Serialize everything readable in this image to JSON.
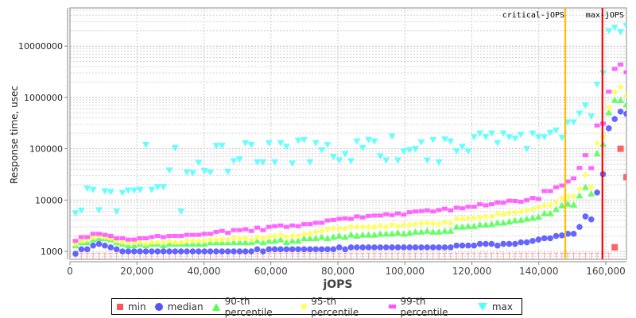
{
  "chart_data": {
    "type": "scatter",
    "title": "",
    "xlabel": "jOPS",
    "ylabel": "Response time, usec",
    "xlim": [
      0,
      166200
    ],
    "ylim": [
      700,
      55000000
    ],
    "yscale": "log",
    "grid": true,
    "legend_placement": "bottom",
    "x_ticks": [
      "0",
      "20,000",
      "40,000",
      "60,000",
      "80,000",
      "100,000",
      "120,000",
      "140,000",
      "160,000"
    ],
    "x_tick_values": [
      0,
      20000,
      40000,
      60000,
      80000,
      100000,
      120000,
      140000,
      160000
    ],
    "y_ticks": [
      "1000",
      "10000",
      "100000",
      "1000000",
      "10000000"
    ],
    "y_tick_values": [
      1000,
      10000,
      100000,
      1000000,
      10000000
    ],
    "x_start": 1660,
    "x_step": 1750,
    "markers": [
      {
        "label": "critical-jOPS",
        "x": 147900,
        "color": "#ffc000"
      },
      {
        "label": "max-jOPS",
        "x": 159000,
        "color": "#ff0000"
      }
    ],
    "series": [
      {
        "name": "min",
        "color": "#ff5555",
        "shape": "square",
        "values": [
          800,
          800,
          800,
          800,
          800,
          800,
          800,
          800,
          800,
          800,
          800,
          800,
          800,
          800,
          800,
          800,
          800,
          800,
          800,
          800,
          800,
          800,
          800,
          800,
          800,
          800,
          800,
          800,
          800,
          800,
          800,
          800,
          800,
          800,
          800,
          800,
          800,
          800,
          800,
          800,
          800,
          800,
          800,
          800,
          800,
          800,
          800,
          800,
          800,
          800,
          800,
          800,
          800,
          800,
          800,
          800,
          800,
          800,
          800,
          800,
          800,
          800,
          800,
          800,
          800,
          800,
          800,
          800,
          800,
          800,
          800,
          800,
          800,
          800,
          800,
          800,
          800,
          800,
          800,
          800,
          800,
          800,
          800,
          800,
          800,
          800,
          800,
          800,
          800,
          800,
          800,
          800,
          1200,
          100000,
          28000
        ]
      },
      {
        "name": "median",
        "color": "#5555ff",
        "shape": "circle",
        "values": [
          900,
          1100,
          1100,
          1300,
          1400,
          1300,
          1200,
          1100,
          1000,
          1000,
          1000,
          1000,
          1000,
          1000,
          1000,
          1000,
          1000,
          1000,
          1000,
          1000,
          1000,
          1000,
          1000,
          1000,
          1000,
          1000,
          1000,
          1000,
          1000,
          1000,
          1000,
          1100,
          1000,
          1100,
          1100,
          1100,
          1100,
          1100,
          1100,
          1100,
          1100,
          1100,
          1100,
          1100,
          1100,
          1200,
          1100,
          1200,
          1200,
          1200,
          1200,
          1200,
          1200,
          1200,
          1200,
          1200,
          1200,
          1200,
          1200,
          1200,
          1200,
          1200,
          1200,
          1200,
          1200,
          1300,
          1300,
          1300,
          1300,
          1400,
          1400,
          1400,
          1300,
          1400,
          1400,
          1400,
          1500,
          1500,
          1600,
          1700,
          1800,
          1800,
          2000,
          2050,
          2200,
          2200,
          3000,
          4800,
          4200,
          14000,
          32000,
          250000,
          380000,
          530000,
          480000
        ]
      },
      {
        "name": "90-th percentile",
        "color": "#55ff55",
        "shape": "triangle",
        "values": [
          1300,
          1500,
          1500,
          1700,
          1800,
          1800,
          1700,
          1500,
          1400,
          1300,
          1300,
          1400,
          1300,
          1400,
          1400,
          1300,
          1400,
          1400,
          1400,
          1400,
          1400,
          1400,
          1400,
          1500,
          1500,
          1500,
          1500,
          1500,
          1500,
          1500,
          1500,
          1600,
          1500,
          1600,
          1600,
          1700,
          1500,
          1600,
          1600,
          1800,
          1800,
          1800,
          1900,
          1800,
          1900,
          2000,
          1900,
          2100,
          2000,
          2100,
          2100,
          2100,
          2200,
          2200,
          2200,
          2300,
          2200,
          2300,
          2400,
          2400,
          2500,
          2400,
          2400,
          2500,
          2500,
          3000,
          3000,
          3100,
          3100,
          3300,
          3300,
          3400,
          3600,
          3600,
          3800,
          4000,
          4100,
          4300,
          4500,
          4700,
          5500,
          5500,
          6600,
          7800,
          8400,
          8100,
          12200,
          17800,
          13300,
          81000,
          123000,
          510000,
          890000,
          880000,
          730000
        ]
      },
      {
        "name": "95-th percentile",
        "color": "#ffff55",
        "shape": "diamond",
        "values": [
          1400,
          1600,
          1700,
          1900,
          2000,
          1900,
          1800,
          1600,
          1500,
          1500,
          1500,
          1500,
          1400,
          1500,
          1500,
          1500,
          1600,
          1500,
          1500,
          1600,
          1600,
          1600,
          1600,
          1700,
          1700,
          1700,
          1700,
          1800,
          1800,
          1800,
          1700,
          1900,
          1800,
          1900,
          2000,
          2100,
          1900,
          2000,
          2000,
          2200,
          2200,
          2400,
          2500,
          2700,
          2800,
          2800,
          2800,
          3000,
          3000,
          3000,
          3000,
          3000,
          3200,
          3000,
          3300,
          3100,
          3300,
          3300,
          3400,
          3500,
          3600,
          3500,
          3400,
          3700,
          3500,
          4300,
          4300,
          4400,
          4500,
          4600,
          4800,
          4800,
          5300,
          5300,
          5600,
          5700,
          6000,
          6300,
          6600,
          7200,
          7800,
          7800,
          9100,
          10800,
          11800,
          11800,
          16500,
          31000,
          17800,
          128000,
          172000,
          630000,
          1270000,
          1600000,
          1100000
        ]
      },
      {
        "name": "99-th percentile",
        "color": "#ff55ff",
        "shape": "bar",
        "values": [
          1600,
          1900,
          1900,
          2200,
          2200,
          2100,
          2000,
          1800,
          1800,
          1700,
          1700,
          1800,
          1800,
          1900,
          2000,
          1900,
          2000,
          2000,
          2000,
          2100,
          2100,
          2100,
          2200,
          2200,
          2400,
          2500,
          2300,
          2600,
          2600,
          2700,
          2500,
          2900,
          2600,
          3000,
          3100,
          3200,
          3000,
          3200,
          3100,
          3400,
          3400,
          3600,
          3600,
          4000,
          4100,
          4300,
          4400,
          4300,
          4800,
          4600,
          4900,
          5000,
          5000,
          5300,
          5100,
          5500,
          5200,
          5800,
          6000,
          6100,
          6300,
          6000,
          6400,
          6800,
          6300,
          7100,
          6900,
          7400,
          7400,
          8300,
          7900,
          8300,
          9000,
          8900,
          9700,
          9600,
          9300,
          10000,
          11000,
          10500,
          15000,
          15000,
          17800,
          19200,
          23000,
          26500,
          42500,
          75000,
          42000,
          285000,
          310000,
          1300000,
          3600000,
          4400000,
          3100000
        ]
      },
      {
        "name": "max",
        "color": "#55ffff",
        "shape": "triangle-down",
        "values": [
          5600,
          6300,
          17000,
          16000,
          6400,
          15000,
          14500,
          6000,
          14000,
          15500,
          15500,
          16000,
          120000,
          16000,
          18000,
          18000,
          38000,
          105000,
          6000,
          35000,
          34000,
          54000,
          37000,
          35000,
          115000,
          115000,
          36000,
          58000,
          63000,
          130000,
          120000,
          55000,
          55000,
          130000,
          55000,
          130000,
          110000,
          52000,
          145000,
          150000,
          55000,
          130000,
          95000,
          120000,
          70000,
          60000,
          80000,
          58000,
          140000,
          105000,
          150000,
          140000,
          72000,
          60000,
          175000,
          60000,
          90000,
          95000,
          100000,
          135000,
          60000,
          150000,
          55000,
          155000,
          140000,
          90000,
          110000,
          90000,
          170000,
          200000,
          170000,
          200000,
          130000,
          200000,
          170000,
          160000,
          190000,
          100000,
          200000,
          170000,
          170000,
          206000,
          230000,
          165000,
          330000,
          330000,
          490000,
          700000,
          430000,
          1800000,
          3000000,
          20000000,
          23000000,
          19000000,
          25000000
        ]
      }
    ]
  }
}
